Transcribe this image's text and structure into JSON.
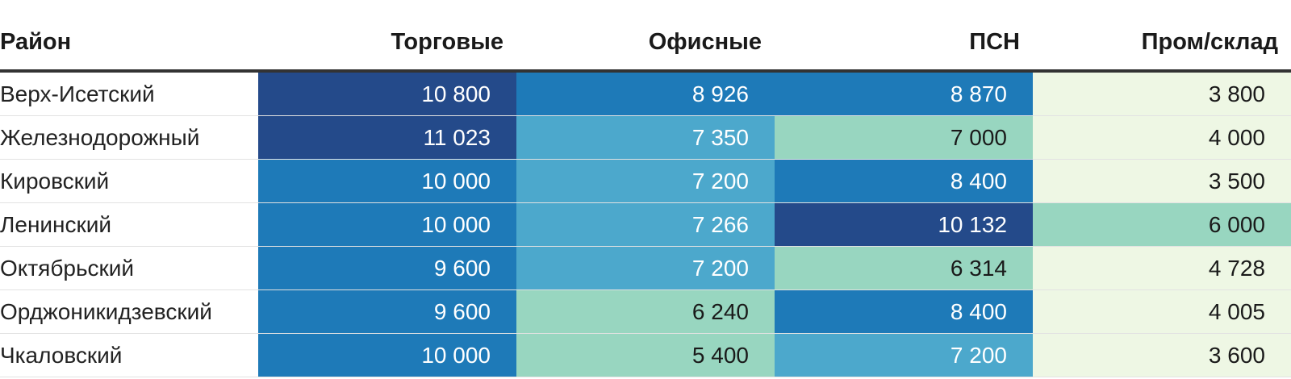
{
  "chart_data": {
    "type": "heatmap",
    "columns": [
      "Район",
      "Торговые",
      "Офисные",
      "ПСН",
      "Пром/склад"
    ],
    "rows": [
      {
        "district": "Верх-Исетский",
        "values": [
          "10 800",
          "8 926",
          "8 870",
          "3 800"
        ]
      },
      {
        "district": "Железнодорожный",
        "values": [
          "11 023",
          "7 350",
          "7 000",
          "4 000"
        ]
      },
      {
        "district": "Кировский",
        "values": [
          "10 000",
          "7 200",
          "8 400",
          "3 500"
        ]
      },
      {
        "district": "Ленинский",
        "values": [
          "10 000",
          "7 266",
          "10 132",
          "6 000"
        ]
      },
      {
        "district": "Октябрьский",
        "values": [
          "9 600",
          "7 200",
          "6 314",
          "4 728"
        ]
      },
      {
        "district": "Орджоникидзевский",
        "values": [
          "9 600",
          "6 240",
          "8 400",
          "4 005"
        ]
      },
      {
        "district": "Чкаловский",
        "values": [
          "10 000",
          "5 400",
          "7 200",
          "3 600"
        ]
      }
    ],
    "color_scale": [
      {
        "max": 5000,
        "color": "#eef7e4",
        "text": "#1a1a1a"
      },
      {
        "max": 7000,
        "color": "#98d6c0",
        "text": "#1a1a1a"
      },
      {
        "max": 8000,
        "color": "#4ca8cc",
        "text": "#ffffff"
      },
      {
        "max": 10000,
        "color": "#1e7ab8",
        "text": "#ffffff"
      },
      {
        "max": 99999,
        "color": "#244a8a",
        "text": "#ffffff"
      }
    ]
  }
}
